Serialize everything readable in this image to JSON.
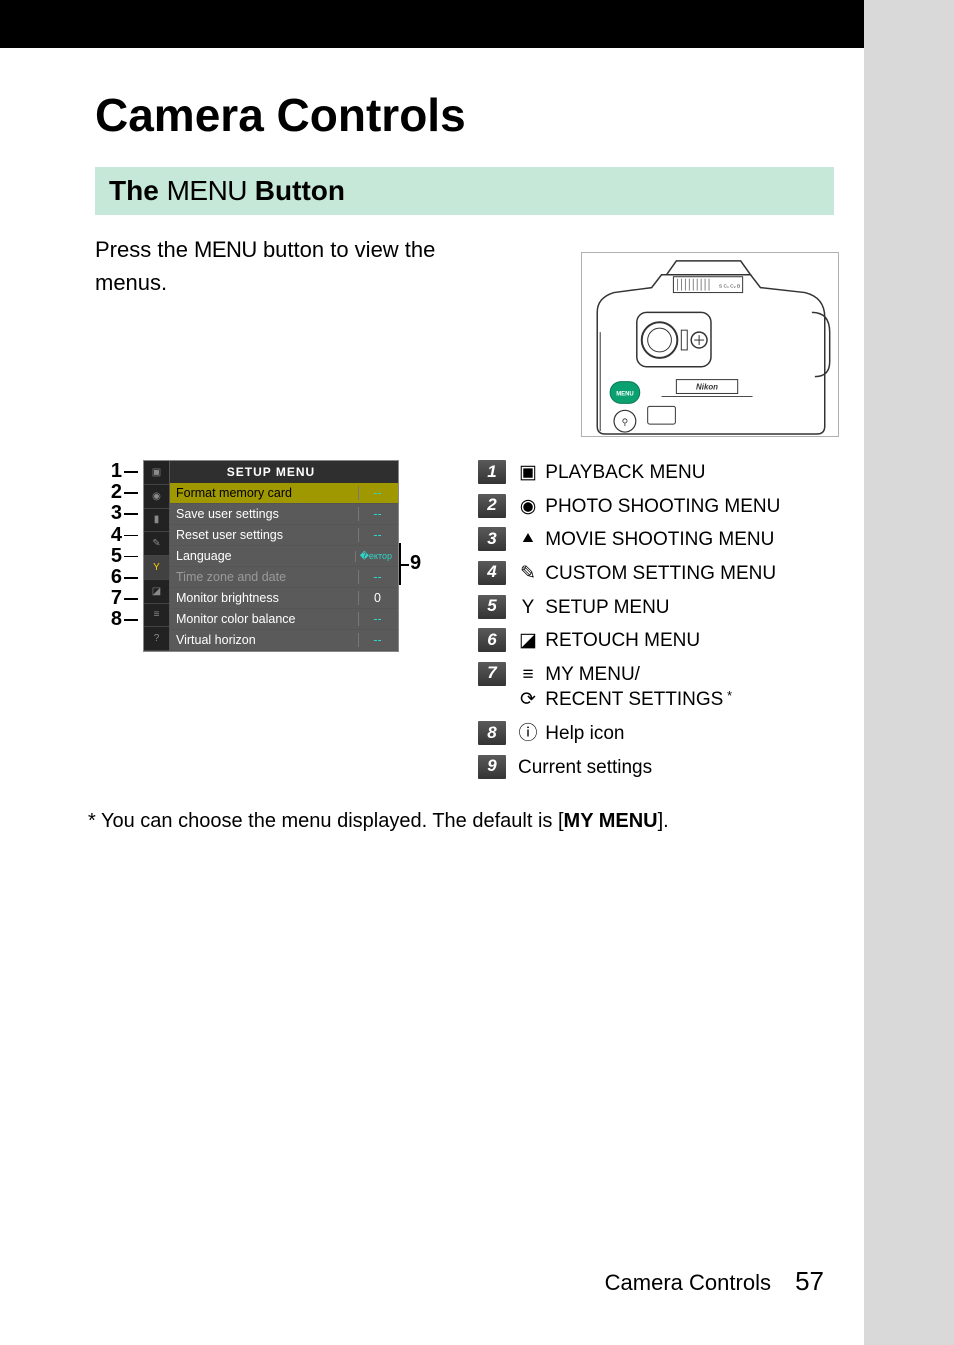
{
  "page": {
    "title": "Camera Controls",
    "section_heading_pre": "The ",
    "section_heading_menu": "MENU",
    "section_heading_post": " Button",
    "intro_pre": "Press the ",
    "intro_menu": "MENU",
    "intro_post": " button to view the menus.",
    "footer_text": "Camera Controls",
    "page_number": "57"
  },
  "camera": {
    "brand": "Nikon",
    "menu_btn_color": "#0aa06f"
  },
  "menu_screen": {
    "title": "SETUP MENU",
    "tabs": [
      {
        "icon": "▣",
        "active": false
      },
      {
        "icon": "◉",
        "active": false
      },
      {
        "icon": "▮",
        "active": false
      },
      {
        "icon": "✎",
        "active": false
      },
      {
        "icon": "Y",
        "active": true
      },
      {
        "icon": "◪",
        "active": false
      },
      {
        "icon": "≡",
        "active": false
      },
      {
        "icon": "?",
        "active": false
      }
    ],
    "rows": [
      {
        "label": "Format memory card",
        "val": "--",
        "hl": true
      },
      {
        "label": "Save user settings",
        "val": "--"
      },
      {
        "label": "Reset user settings",
        "val": "--"
      },
      {
        "label": "Language",
        "val": "�ектор",
        "lang": true
      },
      {
        "label": "Time zone and date",
        "val": "--",
        "dim": true
      },
      {
        "label": "Monitor brightness",
        "val": "0",
        "zero": true
      },
      {
        "label": "Monitor color balance",
        "val": "--"
      },
      {
        "label": "Virtual horizon",
        "val": "--"
      }
    ],
    "left_callouts": [
      "1",
      "2",
      "3",
      "4",
      "5",
      "6",
      "7",
      "8"
    ],
    "right_callout": "9"
  },
  "legend": [
    {
      "n": "1",
      "icon": "▣",
      "text": "PLAYBACK MENU"
    },
    {
      "n": "2",
      "icon": "◉",
      "text": "PHOTO SHOOTING MENU"
    },
    {
      "n": "3",
      "icon": "⯅",
      "text": "MOVIE SHOOTING MENU"
    },
    {
      "n": "4",
      "icon": "✎",
      "text": "CUSTOM SETTING MENU"
    },
    {
      "n": "5",
      "icon": "Y",
      "text": "SETUP MENU"
    },
    {
      "n": "6",
      "icon": "◪",
      "text": "RETOUCH MENU"
    },
    {
      "n": "7",
      "icon": "≡",
      "text": "MY MENU/",
      "icon2": "⟳",
      "text2": "RECENT SETTINGS",
      "star": "*"
    },
    {
      "n": "8",
      "icon": "ⓘ",
      "text": "Help icon"
    },
    {
      "n": "9",
      "icon": "",
      "text": "Current settings"
    }
  ],
  "footnote": {
    "pre": "*  You can choose the menu displayed. The default is [",
    "bold": "MY MENU",
    "post": "]."
  }
}
